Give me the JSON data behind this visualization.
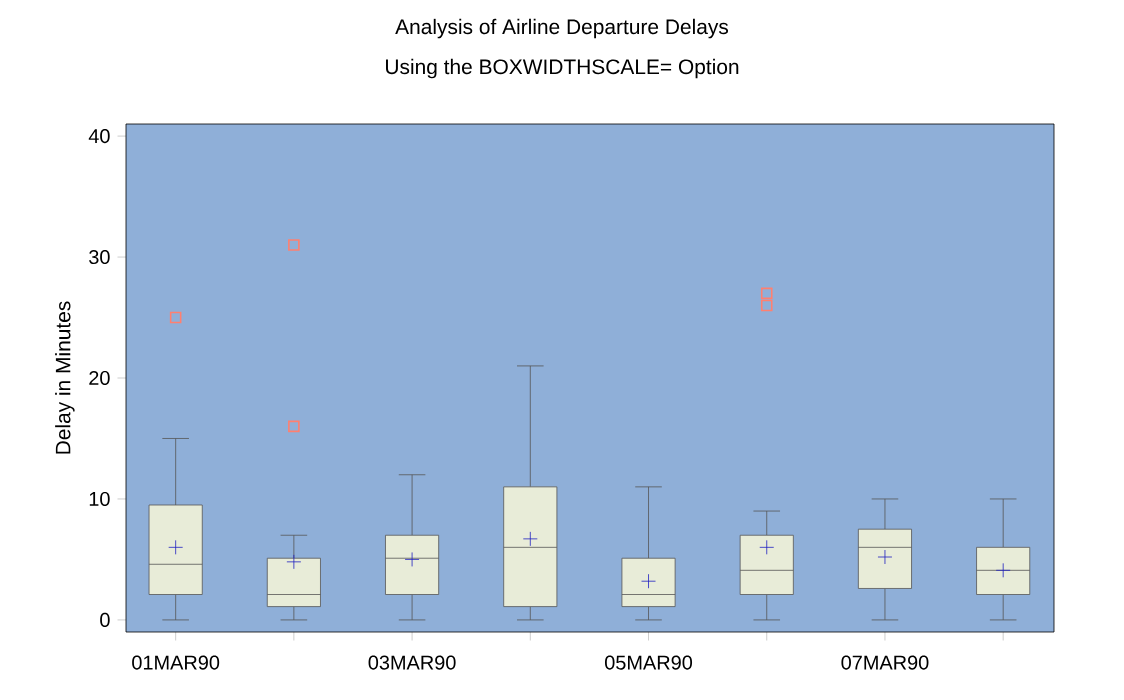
{
  "chart_data": {
    "type": "box",
    "title": "Analysis of Airline Departure Delays",
    "subtitle": "Using the BOXWIDTHSCALE= Option",
    "ylabel": "Delay in Minutes",
    "categories": [
      "01MAR90",
      null,
      "03MAR90",
      null,
      "05MAR90",
      null,
      "07MAR90",
      null
    ],
    "ylim": [
      -1,
      41
    ],
    "yticks": [
      0,
      10,
      20,
      30,
      40
    ],
    "grid": false,
    "series": [
      {
        "color": "#555555",
        "boxes": [
          {
            "low": 0,
            "q1": 2.1,
            "median": 4.6,
            "q3": 9.5,
            "high": 15,
            "mean": 6,
            "outliers": [
              25
            ]
          },
          {
            "low": 0,
            "q1": 1.1,
            "median": 2.1,
            "q3": 5.1,
            "high": 7,
            "mean": 4.8,
            "outliers": [
              16,
              31
            ]
          },
          {
            "low": 0,
            "q1": 2.1,
            "median": 5.1,
            "q3": 7,
            "high": 12,
            "mean": 5
          },
          {
            "low": 0,
            "q1": 1.1,
            "median": 6,
            "q3": 11,
            "high": 21,
            "mean": 6.7
          },
          {
            "low": 0,
            "q1": 1.1,
            "median": 2.1,
            "q3": 5.1,
            "high": 11,
            "mean": 3.2
          },
          {
            "low": 0,
            "q1": 2.1,
            "median": 4.1,
            "q3": 7,
            "high": 9,
            "mean": 6,
            "outliers": [
              26,
              27
            ]
          },
          {
            "low": 0,
            "q1": 2.6,
            "median": 6,
            "q3": 7.5,
            "high": 10,
            "mean": 5.2
          },
          {
            "low": 0,
            "q1": 2.1,
            "median": 4.1,
            "q3": 6,
            "high": 10,
            "mean": 4.1
          }
        ]
      }
    ]
  }
}
